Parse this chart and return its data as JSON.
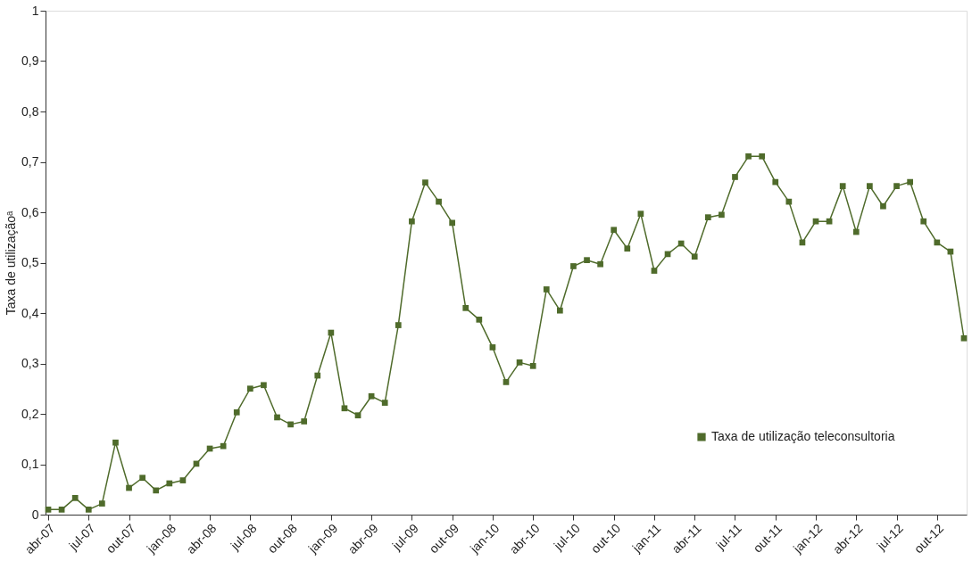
{
  "chart_data": {
    "type": "line",
    "ylabel": "Taxa de utilizaçãoᵃ",
    "categories": [
      "abr-07",
      null,
      null,
      "jul-07",
      null,
      null,
      "out-07",
      null,
      null,
      "jan-08",
      null,
      null,
      "abr-08",
      null,
      null,
      "jul-08",
      null,
      null,
      "out-08",
      null,
      null,
      "jan-09",
      null,
      null,
      "abr-09",
      null,
      null,
      "jul-09",
      null,
      null,
      "out-09",
      null,
      null,
      "jan-10",
      null,
      null,
      "abr-10",
      null,
      null,
      "jul-10",
      null,
      null,
      "out-10",
      null,
      null,
      "jan-11",
      null,
      null,
      "abr-11",
      null,
      null,
      "jul-11",
      null,
      null,
      "out-11",
      null,
      null,
      "jan-12",
      null,
      null,
      "abr-12",
      null,
      null,
      "jul-12",
      null,
      null,
      "out-12",
      null,
      null
    ],
    "series": [
      {
        "name": "Taxa de utilização teleconsultoria",
        "color": "#4f6b2b",
        "values": [
          0.01,
          0.01,
          0.033,
          0.01,
          0.022,
          0.143,
          0.053,
          0.073,
          0.048,
          0.062,
          0.068,
          0.101,
          0.131,
          0.136,
          0.203,
          0.25,
          0.257,
          0.193,
          0.179,
          0.185,
          0.276,
          0.361,
          0.211,
          0.197,
          0.235,
          0.222,
          0.376,
          0.582,
          0.659,
          0.621,
          0.579,
          0.41,
          0.387,
          0.332,
          0.263,
          0.302,
          0.295,
          0.447,
          0.405,
          0.493,
          0.505,
          0.497,
          0.565,
          0.528,
          0.597,
          0.484,
          0.517,
          0.538,
          0.512,
          0.59,
          0.595,
          0.67,
          0.711,
          0.711,
          0.66,
          0.621,
          0.54,
          0.582,
          0.582,
          0.652,
          0.561,
          0.652,
          0.612,
          0.652,
          0.66,
          0.582,
          0.54,
          0.522,
          0.35
        ]
      }
    ],
    "ylim": [
      0,
      1
    ],
    "yticks": [
      0,
      {
        "value": 0.1,
        "label": "0,1"
      },
      {
        "value": 0.2,
        "label": "0,2"
      },
      {
        "value": 0.3,
        "label": "0,3"
      },
      {
        "value": 0.4,
        "label": "0,4"
      },
      {
        "value": 0.5,
        "label": "0,5"
      },
      {
        "value": 0.6,
        "label": "0,6"
      },
      {
        "value": 0.7,
        "label": "0,7"
      },
      {
        "value": 0.8,
        "label": "0,8"
      },
      {
        "value": 0.9,
        "label": "0,9"
      },
      1
    ],
    "grid": false,
    "legend": "right",
    "marker": "square",
    "line_style": "solid"
  }
}
